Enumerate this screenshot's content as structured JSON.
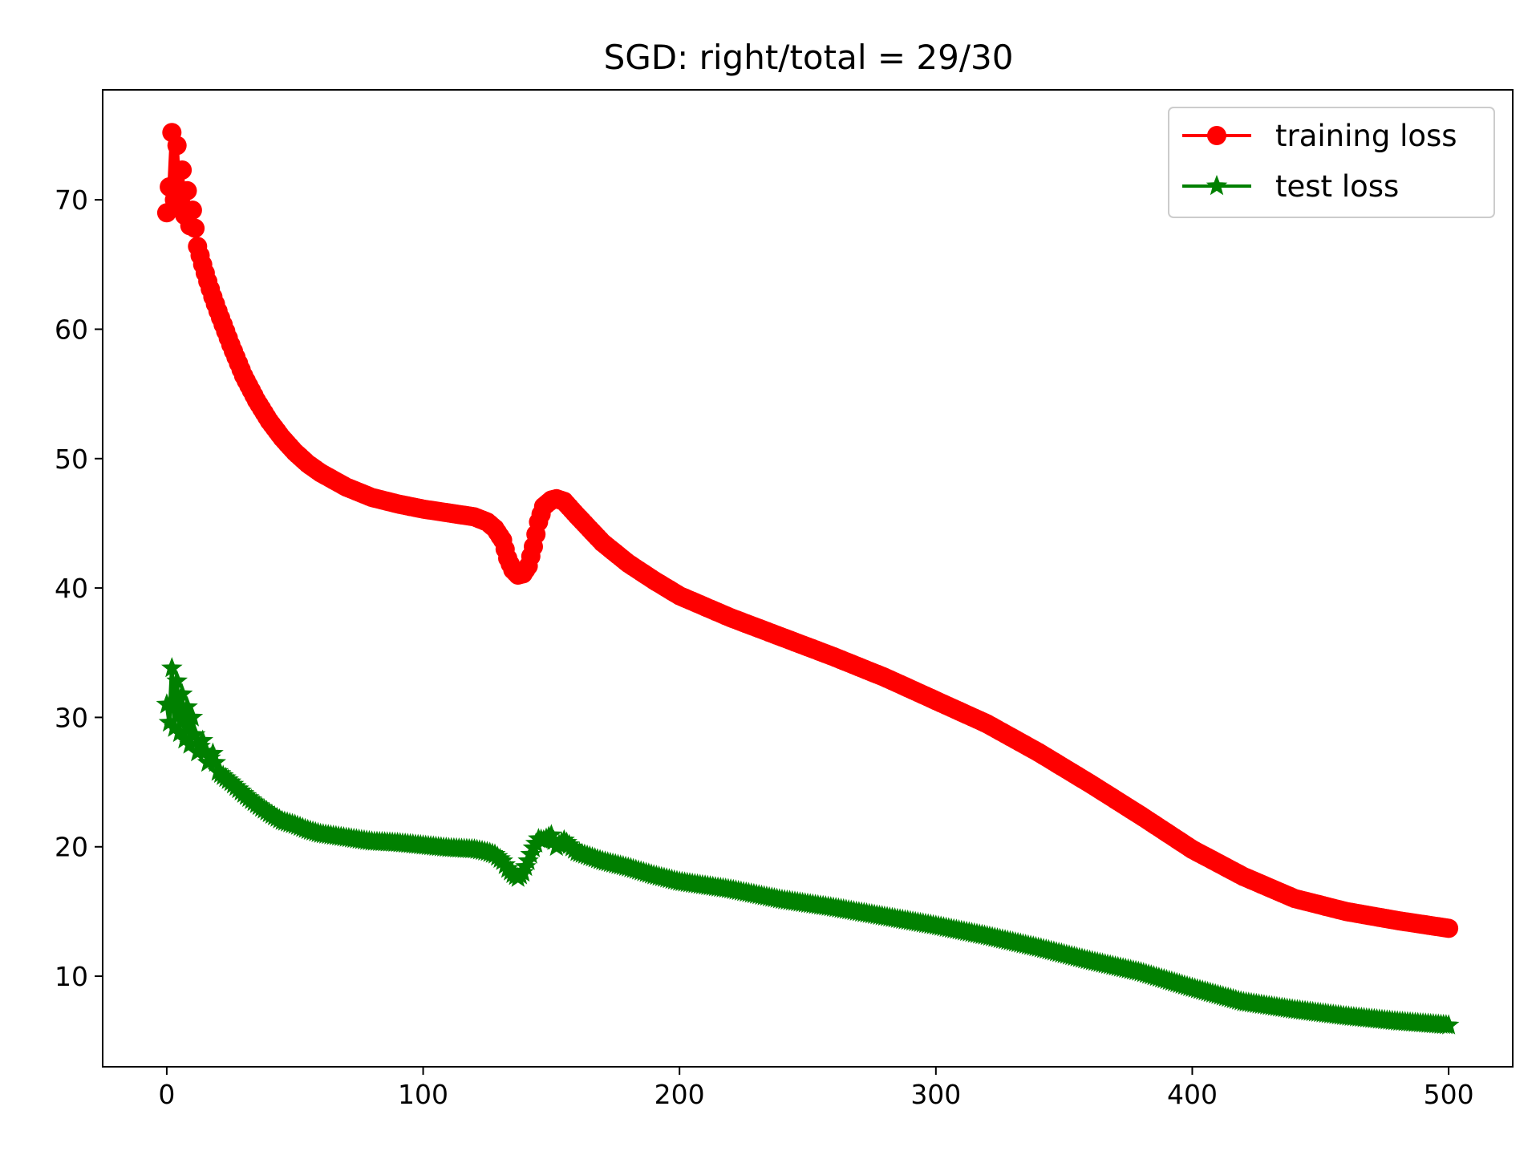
{
  "chart_data": {
    "type": "line",
    "title": "SGD: right/total = 29/30",
    "xlabel": "",
    "ylabel": "",
    "xlim": [
      -25,
      525
    ],
    "ylim": [
      3,
      78.5
    ],
    "xticks": [
      0,
      100,
      200,
      300,
      400,
      500
    ],
    "yticks": [
      10,
      20,
      30,
      40,
      50,
      60,
      70
    ],
    "grid": false,
    "legend": {
      "placement": "top-right"
    },
    "series": [
      {
        "name": "training loss",
        "color": "#ff0000",
        "marker": "circle",
        "x": [
          0,
          1,
          2,
          3,
          4,
          5,
          6,
          7,
          8,
          9,
          10,
          12,
          14,
          16,
          18,
          20,
          25,
          30,
          35,
          40,
          45,
          50,
          55,
          60,
          70,
          80,
          90,
          100,
          110,
          120,
          125,
          128,
          131,
          133,
          135,
          137,
          139,
          141,
          143,
          145,
          147,
          150,
          152,
          155,
          160,
          170,
          180,
          190,
          200,
          220,
          240,
          260,
          280,
          300,
          320,
          340,
          360,
          380,
          400,
          420,
          440,
          460,
          480,
          500
        ],
        "values": [
          69.0,
          71.0,
          75.2,
          70.0,
          74.2,
          69.5,
          72.3,
          68.8,
          70.7,
          68.0,
          69.2,
          66.4,
          65.0,
          63.7,
          62.5,
          61.4,
          58.8,
          56.4,
          54.5,
          52.9,
          51.6,
          50.5,
          49.6,
          48.9,
          47.8,
          47.0,
          46.5,
          46.1,
          45.8,
          45.5,
          45.1,
          44.6,
          43.7,
          42.3,
          41.4,
          41.0,
          41.1,
          41.7,
          43.2,
          45.1,
          46.3,
          46.8,
          46.9,
          46.7,
          45.6,
          43.5,
          41.9,
          40.6,
          39.4,
          37.7,
          36.2,
          34.7,
          33.1,
          31.3,
          29.5,
          27.3,
          24.9,
          22.4,
          19.8,
          17.7,
          16.0,
          15.0,
          14.3,
          13.7
        ]
      },
      {
        "name": "test loss",
        "color": "#008000",
        "marker": "star",
        "x": [
          0,
          1,
          2,
          3,
          4,
          5,
          6,
          7,
          8,
          9,
          10,
          12,
          14,
          16,
          18,
          20,
          25,
          30,
          35,
          40,
          45,
          50,
          55,
          60,
          70,
          80,
          90,
          100,
          110,
          120,
          125,
          128,
          131,
          133,
          135,
          137,
          139,
          141,
          143,
          145,
          147,
          150,
          152,
          155,
          160,
          170,
          180,
          190,
          200,
          220,
          240,
          260,
          280,
          300,
          320,
          340,
          360,
          380,
          400,
          420,
          440,
          460,
          480,
          500
        ],
        "values": [
          31.0,
          29.6,
          33.8,
          29.2,
          32.8,
          28.8,
          31.8,
          28.3,
          30.8,
          27.9,
          30.0,
          27.3,
          28.2,
          26.5,
          27.2,
          25.8,
          25.0,
          24.1,
          23.3,
          22.6,
          22.0,
          21.7,
          21.3,
          21.0,
          20.7,
          20.4,
          20.3,
          20.1,
          19.9,
          19.8,
          19.6,
          19.4,
          18.9,
          18.3,
          17.9,
          17.6,
          18.0,
          18.9,
          19.9,
          20.6,
          20.5,
          20.9,
          20.0,
          20.5,
          19.6,
          18.9,
          18.4,
          17.8,
          17.3,
          16.7,
          15.9,
          15.3,
          14.6,
          13.9,
          13.1,
          12.2,
          11.2,
          10.3,
          9.1,
          8.0,
          7.4,
          6.9,
          6.5,
          6.2
        ]
      }
    ]
  }
}
